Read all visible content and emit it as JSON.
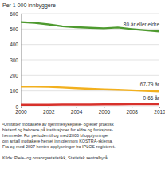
{
  "chart_data": {
    "type": "line",
    "title": "Per 1 000 innbyggere",
    "x": [
      2000,
      2001,
      2002,
      2003,
      2004,
      2005,
      2006,
      2007,
      2008,
      2009,
      2010
    ],
    "series": [
      {
        "name": "80 år eller eldre",
        "color": "#4e9a2f",
        "values": [
          545,
          540,
          530,
          518,
          512,
          508,
          505,
          510,
          500,
          492,
          485
        ]
      },
      {
        "name": "67-79 år",
        "color": "#f2b01e",
        "values": [
          128,
          128,
          126,
          122,
          118,
          114,
          110,
          107,
          104,
          100,
          97
        ]
      },
      {
        "name": "0-66 år",
        "color": "#d7312b",
        "values": [
          12,
          12,
          12,
          13,
          13,
          13,
          14,
          14,
          15,
          15,
          15
        ]
      }
    ],
    "xlim": [
      2000,
      2010
    ],
    "xticks": [
      2000,
      2002,
      2004,
      2006,
      2008,
      2010
    ],
    "ylim": [
      0,
      600
    ],
    "yticks": [
      0,
      100,
      200,
      300,
      400,
      500,
      600
    ],
    "grid": true,
    "notes": [
      "¹Omfatter mottakere av hjemmesykepleie- og/eller praktisk",
      "bistand og beboere på institusjoner for eldre og funksjons-",
      "hemmede. For perioden til og med 2006 bl opplysninger",
      "om antall mottakere hentet inn gjennom KOSTRA-skjema.",
      "Fra og med 2007 hentes opplysninger fra IPLOS-registeret."
    ],
    "source": "Kilde: Pleie- og omsorgsstatistikk, Statistisk sentralbyrå."
  }
}
